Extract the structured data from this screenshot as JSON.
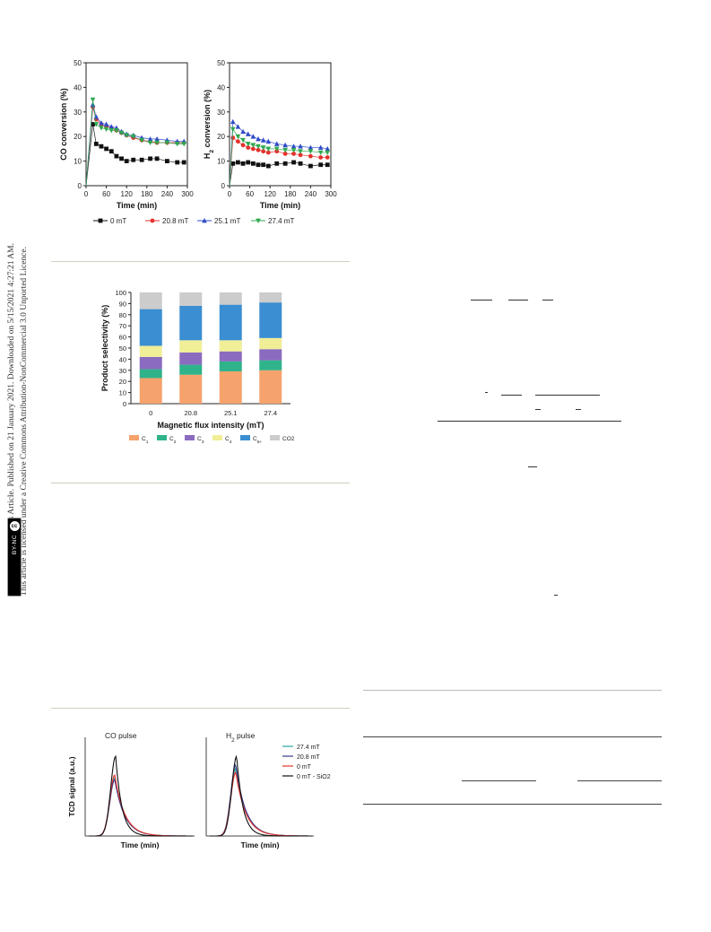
{
  "sidebar": {
    "line1": "Open Access Article. Published on 21 January 2021. Downloaded on 5/15/2021 4:27:21 AM.",
    "line2": "This article is licensed under a Creative Commons Attribution-NonCommercial 3.0 Unported Licence.",
    "badge_cc": "cc",
    "badge_by": "BY-NC"
  },
  "chart_data": [
    {
      "type": "line",
      "ylabel": "CO conversion (%)",
      "xlabel": "Time (min)",
      "xlim": [
        0,
        300
      ],
      "ylim": [
        0,
        50
      ],
      "xticks": [
        "0",
        "60",
        "120",
        "180",
        "240",
        "300"
      ],
      "yticks": [
        "0",
        "10",
        "20",
        "30",
        "40",
        "50"
      ],
      "x": [
        0,
        20,
        30,
        45,
        60,
        75,
        90,
        105,
        120,
        140,
        165,
        190,
        210,
        240,
        270,
        290
      ],
      "series": [
        {
          "name": "0 mT",
          "color": "#111111",
          "marker": "square",
          "values": [
            0,
            25,
            17,
            16,
            15,
            14,
            12,
            11,
            10,
            10.5,
            10.5,
            11,
            11,
            10,
            9.5,
            9.5
          ]
        },
        {
          "name": "20.8 mT",
          "color": "#e5312b",
          "marker": "circle",
          "values": [
            0,
            32,
            27,
            25,
            24,
            23.5,
            22.5,
            21.5,
            20.5,
            19.5,
            18.5,
            18,
            17.5,
            17.5,
            17.5,
            17.5
          ]
        },
        {
          "name": "25.1 mT",
          "color": "#2f4bc8",
          "marker": "triangle-up",
          "values": [
            0,
            33,
            28,
            25.5,
            25,
            24,
            23.5,
            22,
            21,
            20.5,
            19.5,
            19,
            19,
            18.5,
            18,
            18
          ]
        },
        {
          "name": "27.4 mT",
          "color": "#2fa84f",
          "marker": "triangle-down",
          "values": [
            0,
            35,
            25,
            23.5,
            23,
            22.5,
            22.5,
            21.5,
            20.5,
            20,
            18.5,
            17.5,
            17.5,
            17.5,
            17,
            17
          ]
        }
      ]
    },
    {
      "type": "line",
      "ylabel": "H2 conversion (%)",
      "xlabel": "Time (min)",
      "xlim": [
        0,
        300
      ],
      "ylim": [
        0,
        50
      ],
      "xticks": [
        "0",
        "60",
        "120",
        "180",
        "240",
        "300"
      ],
      "yticks": [
        "0",
        "10",
        "20",
        "30",
        "40",
        "50"
      ],
      "x": [
        0,
        10,
        25,
        40,
        55,
        70,
        85,
        100,
        115,
        140,
        165,
        190,
        210,
        240,
        270,
        290
      ],
      "series": [
        {
          "name": "0 mT",
          "color": "#111111",
          "marker": "square",
          "values": [
            0,
            9,
            9.5,
            9,
            9.5,
            9,
            8.5,
            8.5,
            8,
            9,
            9,
            9.5,
            9,
            8,
            8.5,
            8.5
          ]
        },
        {
          "name": "20.8 mT",
          "color": "#e5312b",
          "marker": "circle",
          "values": [
            0,
            19.5,
            18,
            16.5,
            15.5,
            15,
            14.5,
            14,
            13.5,
            14,
            13,
            13,
            12.5,
            12,
            11.5,
            11.5
          ]
        },
        {
          "name": "25.1 mT",
          "color": "#2f4bc8",
          "marker": "triangle-up",
          "values": [
            0,
            26,
            24,
            22,
            21,
            20,
            19,
            18.5,
            18,
            17,
            16.5,
            16,
            16,
            15.5,
            15.5,
            15
          ]
        },
        {
          "name": "27.4 mT",
          "color": "#2fa84f",
          "marker": "triangle-down",
          "values": [
            0,
            23,
            20,
            18.5,
            17,
            16.5,
            16,
            15.5,
            15,
            15,
            14.5,
            14.5,
            14,
            14,
            13.5,
            13.5
          ]
        }
      ]
    },
    {
      "type": "bar",
      "stacked": true,
      "ylabel": "Product selectivity (%)",
      "xlabel": "Magnetic flux intensity (mT)",
      "categories": [
        "0",
        "20.8",
        "25.1",
        "27.4"
      ],
      "ylim": [
        0,
        100
      ],
      "yticks": [
        "0",
        "10",
        "20",
        "30",
        "40",
        "50",
        "60",
        "70",
        "80",
        "90",
        "100"
      ],
      "series": [
        {
          "name": "C1",
          "color": "#f5a26c",
          "values": [
            23,
            26,
            29,
            30
          ]
        },
        {
          "name": "C2",
          "color": "#2fb38a",
          "values": [
            8,
            9,
            9,
            9
          ]
        },
        {
          "name": "C3",
          "color": "#8b6bbf",
          "values": [
            11,
            11,
            9,
            10
          ]
        },
        {
          "name": "C4",
          "color": "#f1ee98",
          "values": [
            10,
            11,
            10,
            10
          ]
        },
        {
          "name": "C5+",
          "color": "#3b8ed1",
          "values": [
            33,
            31,
            32,
            32
          ]
        },
        {
          "name": "CO2",
          "color": "#cccccc",
          "values": [
            15,
            12,
            11,
            9
          ]
        }
      ]
    },
    {
      "type": "line",
      "ylabel": "TCD signal (a.u.)",
      "xlabel": "Time (min)",
      "panels": [
        {
          "title": "CO pulse",
          "peaks": [
            0.62,
            0.6,
            0.65,
            0.85
          ]
        },
        {
          "title": "H2 pulse",
          "peaks": [
            0.72,
            0.76,
            0.68,
            0.85
          ]
        }
      ],
      "series": [
        {
          "name": "27.4 mT",
          "color": "#2aa6a0"
        },
        {
          "name": "20.8 mT",
          "color": "#3a3a8a"
        },
        {
          "name": "0 mT",
          "color": "#e5312b"
        },
        {
          "name": "0 mT - SiO2",
          "color": "#111111"
        }
      ]
    }
  ]
}
